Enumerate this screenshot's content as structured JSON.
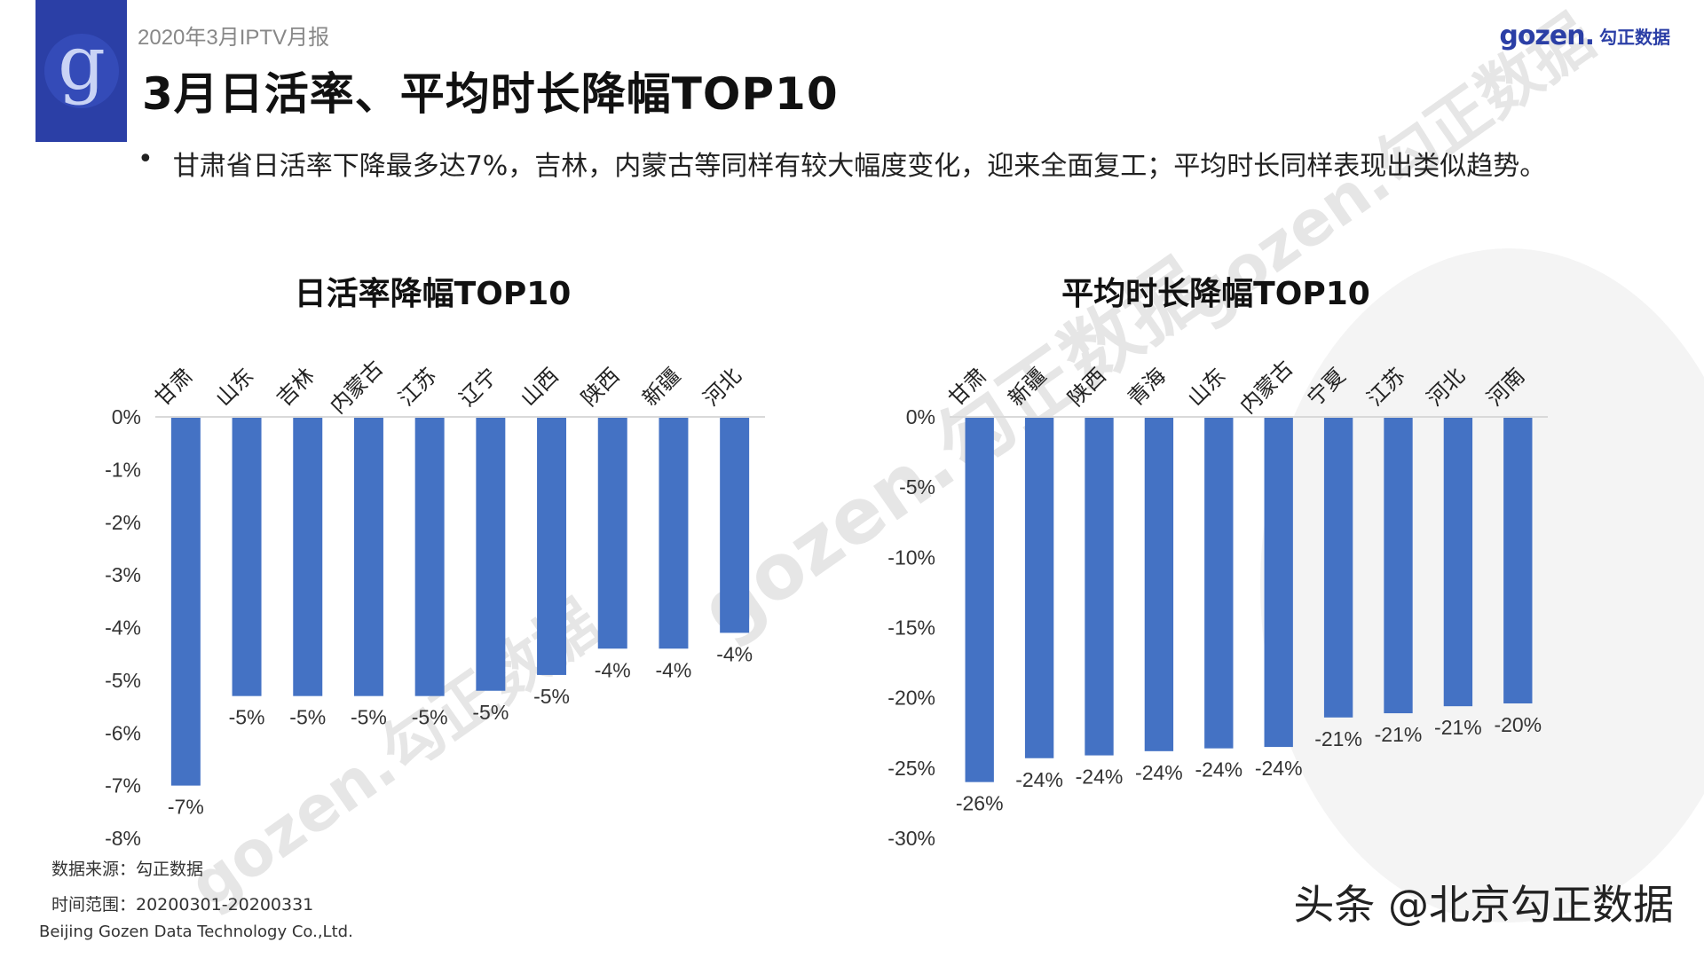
{
  "header": {
    "report_label": "2020年3月IPTV月报",
    "title": "3月日活率、平均时长降幅TOP10",
    "brand_word": "gozen.",
    "brand_cn": "勾正数据"
  },
  "bullet": {
    "marker": "•",
    "text": "甘肃省日活率下降最多达7%，吉林，内蒙古等同样有较大幅度变化，迎来全面复工；平均时长同样表现出类似趋势。"
  },
  "colors": {
    "bar": "#4472c4",
    "accent": "#2b3fa6",
    "axis": "#d9d9d9"
  },
  "chart_data": [
    {
      "type": "bar",
      "title": "日活率降幅TOP10",
      "categories": [
        "甘肃",
        "山东",
        "吉林",
        "内蒙古",
        "江苏",
        "辽宁",
        "山西",
        "陕西",
        "新疆",
        "河北"
      ],
      "values": [
        -7.0,
        -5.3,
        -5.3,
        -5.3,
        -5.3,
        -5.2,
        -4.9,
        -4.4,
        -4.4,
        -4.1
      ],
      "data_labels": [
        "-7%",
        "-5%",
        "-5%",
        "-5%",
        "-5%",
        "-5%",
        "-5%",
        "-4%",
        "-4%",
        "-4%"
      ],
      "ylim": [
        -8,
        0
      ],
      "yticks": [
        0,
        -1,
        -2,
        -3,
        -4,
        -5,
        -6,
        -7,
        -8
      ],
      "ytick_labels": [
        "0%",
        "-1%",
        "-2%",
        "-3%",
        "-4%",
        "-5%",
        "-6%",
        "-7%",
        "-8%"
      ]
    },
    {
      "type": "bar",
      "title": "平均时长降幅TOP10",
      "categories": [
        "甘肃",
        "新疆",
        "陕西",
        "青海",
        "山东",
        "内蒙古",
        "宁夏",
        "江苏",
        "河北",
        "河南"
      ],
      "values": [
        -26.0,
        -24.3,
        -24.1,
        -23.8,
        -23.6,
        -23.5,
        -21.4,
        -21.1,
        -20.6,
        -20.4
      ],
      "data_labels": [
        "-26%",
        "-24%",
        "-24%",
        "-24%",
        "-24%",
        "-24%",
        "-21%",
        "-21%",
        "-21%",
        "-20%"
      ],
      "ylim": [
        -30,
        0
      ],
      "yticks": [
        0,
        -5,
        -10,
        -15,
        -20,
        -25,
        -30
      ],
      "ytick_labels": [
        "0%",
        "-5%",
        "-10%",
        "-15%",
        "-20%",
        "-25%",
        "-30%"
      ]
    }
  ],
  "footer": {
    "source": "数据来源：勾正数据",
    "period": "时间范围：20200301-20200331",
    "company": "Beijing Gozen Data Technology Co.,Ltd."
  },
  "credit": "头条 @北京勾正数据",
  "watermark": "gozen.勾正数据"
}
